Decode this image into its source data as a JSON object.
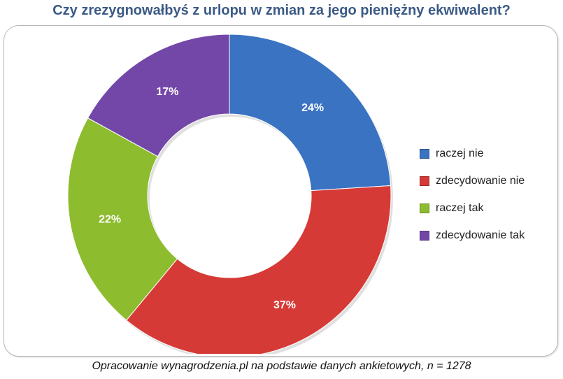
{
  "chart_data": {
    "type": "pie",
    "title": "Czy zrezygnowałbyś z urlopu w zmian za jego pieniężny ekwiwalent?",
    "donut": true,
    "categories": [
      "raczej nie",
      "zdecydowanie nie",
      "raczej tak",
      "zdecydowanie tak"
    ],
    "values": [
      24,
      37,
      22,
      17
    ],
    "labels": [
      "24%",
      "37%",
      "22%",
      "17%"
    ],
    "colors": [
      "#3a73c2",
      "#d63a36",
      "#8dbc2e",
      "#7347a8"
    ],
    "legend": "right"
  },
  "footer": "Opracowanie wynagrodzenia.pl  na podstawie danych ankietowych,  n = 1278"
}
